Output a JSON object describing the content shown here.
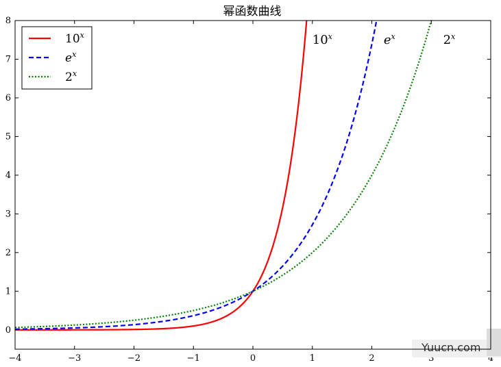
{
  "chart_data": {
    "type": "line",
    "title": "幂函数曲线",
    "xlabel": "",
    "ylabel": "",
    "xlim": [
      -4,
      4
    ],
    "ylim": [
      -0.5,
      8
    ],
    "xticks": [
      -4,
      -3,
      -2,
      -1,
      0,
      1,
      2,
      3,
      4
    ],
    "yticks": [
      0,
      1,
      2,
      3,
      4,
      5,
      6,
      7,
      8
    ],
    "xtick_labels": [
      "−4",
      "−3",
      "−2",
      "−1",
      "0",
      "1",
      "2",
      "3",
      "4"
    ],
    "ytick_labels": [
      "0",
      "1",
      "2",
      "3",
      "4",
      "5",
      "6",
      "7",
      "8"
    ],
    "grid": false,
    "legend_position": "top-left",
    "series": [
      {
        "name": "10^x",
        "base": "10",
        "exp": "x",
        "color": "#ff0000",
        "style": "solid",
        "x": [
          -4,
          -3,
          -2,
          -1,
          -0.5,
          0,
          0.25,
          0.5,
          0.75,
          0.9
        ],
        "y": [
          0.0001,
          0.001,
          0.01,
          0.1,
          0.32,
          1,
          1.78,
          3.16,
          5.62,
          7.94
        ]
      },
      {
        "name": "e^x",
        "base": "e",
        "exp": "x",
        "color": "#0000ff",
        "style": "dashed",
        "x": [
          -4,
          -3,
          -2,
          -1,
          0,
          0.5,
          1,
          1.5,
          1.8,
          2.08
        ],
        "y": [
          0.018,
          0.05,
          0.14,
          0.37,
          1,
          1.65,
          2.72,
          4.48,
          6.05,
          8.0
        ]
      },
      {
        "name": "2^x",
        "base": "2",
        "exp": "x",
        "color": "#008000",
        "style": "dotted",
        "x": [
          -4,
          -3,
          -2,
          -1,
          0,
          1,
          2,
          2.5,
          2.8,
          3.0
        ],
        "y": [
          0.0625,
          0.125,
          0.25,
          0.5,
          1,
          2,
          4,
          5.66,
          6.96,
          8.0
        ]
      }
    ],
    "annotations": [
      {
        "base": "10",
        "exp": "x",
        "x": 1.0,
        "y": 7.5
      },
      {
        "base": "e",
        "exp": "x",
        "x": 2.2,
        "y": 7.5
      },
      {
        "base": "2",
        "exp": "x",
        "x": 3.2,
        "y": 7.5
      }
    ]
  },
  "watermark": "Yuucn.com"
}
